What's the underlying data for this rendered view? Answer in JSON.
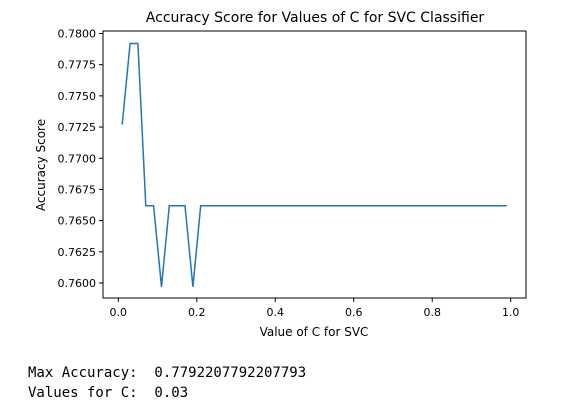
{
  "chart_data": {
    "type": "line",
    "title": "Accuracy Score for Values of C for SVC Classifier",
    "xlabel": "Value of C for SVC",
    "ylabel": "Accuracy Score",
    "xlim": [
      -0.039,
      1.039
    ],
    "ylim": [
      0.7588,
      0.7802
    ],
    "xticks": [
      "0.0",
      "0.2",
      "0.4",
      "0.6",
      "0.8",
      "1.0"
    ],
    "xtick_values": [
      0.0,
      0.2,
      0.4,
      0.6,
      0.8,
      1.0
    ],
    "yticks": [
      "0.7600",
      "0.7625",
      "0.7650",
      "0.7675",
      "0.7700",
      "0.7725",
      "0.7750",
      "0.7775",
      "0.7800"
    ],
    "ytick_values": [
      0.76,
      0.7625,
      0.765,
      0.7675,
      0.77,
      0.7725,
      0.775,
      0.7775,
      0.78
    ],
    "grid": false,
    "line_color": "#1f77b4",
    "series": [
      {
        "x": [
          0.01,
          0.03,
          0.05,
          0.07,
          0.09,
          0.11,
          0.13,
          0.15,
          0.17,
          0.19,
          0.21,
          0.3,
          0.4,
          0.5,
          0.6,
          0.7,
          0.8,
          0.9,
          0.99
        ],
        "y": [
          0.7727,
          0.7792,
          0.7792,
          0.7662,
          0.7662,
          0.7597,
          0.7662,
          0.7662,
          0.7662,
          0.7597,
          0.7662,
          0.7662,
          0.7662,
          0.7662,
          0.7662,
          0.7662,
          0.7662,
          0.7662,
          0.7662
        ]
      }
    ]
  },
  "output": {
    "line1": "Max Accuracy:  0.7792207792207793",
    "line2": "Values for C:  0.03"
  }
}
